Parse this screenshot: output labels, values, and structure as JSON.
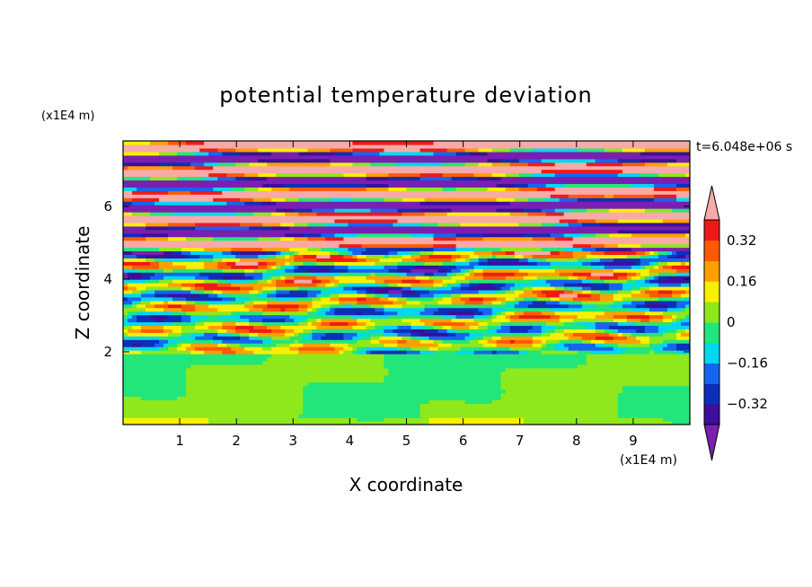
{
  "chart_data": {
    "type": "heatmap",
    "title": "potential temperature deviation",
    "xlabel": "X coordinate",
    "ylabel": "Z coordinate",
    "x_unit": "(x1E4 m)",
    "z_unit": "(x1E4 m)",
    "time_label": "t=6.048e+06 s",
    "xlim": [
      0,
      10
    ],
    "zlim": [
      0,
      7.8
    ],
    "x_ticks": [
      1,
      2,
      3,
      4,
      5,
      6,
      7,
      8,
      9
    ],
    "z_ticks": [
      2,
      4,
      6
    ],
    "colorbar": {
      "levels": [
        {
          "value": -0.4,
          "color": "#7a1fb0"
        },
        {
          "value": -0.32,
          "color": "#3c0f9a"
        },
        {
          "value": -0.24,
          "color": "#0d2fb8"
        },
        {
          "value": -0.16,
          "color": "#1565f0"
        },
        {
          "value": -0.08,
          "color": "#00d8f0"
        },
        {
          "value": 0.0,
          "color": "#22e67a"
        },
        {
          "value": 0.08,
          "color": "#8ee81c"
        },
        {
          "value": 0.16,
          "color": "#f8f000"
        },
        {
          "value": 0.24,
          "color": "#ffa000"
        },
        {
          "value": 0.32,
          "color": "#ff5a00"
        },
        {
          "value": 0.4,
          "color": "#ee1a1a"
        }
      ],
      "under_color": "#7a1fb0",
      "over_color": "#f7aaa8",
      "tick_labels": [
        "0.32",
        "0.16",
        "0",
        "-0.16",
        "-0.32"
      ]
    }
  }
}
